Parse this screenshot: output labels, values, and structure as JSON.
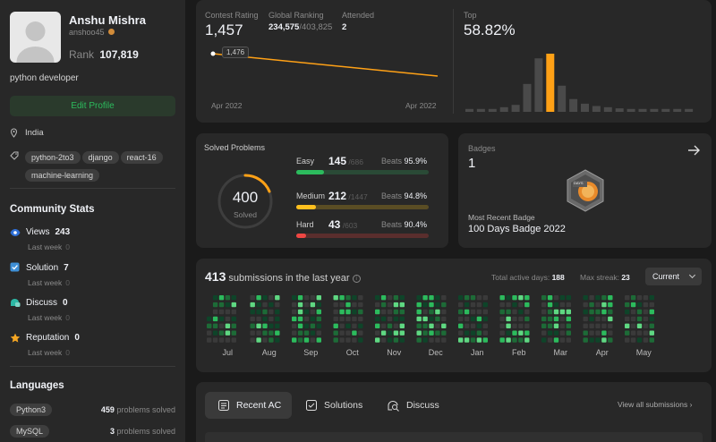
{
  "profile": {
    "name": "Anshu Mishra",
    "username": "anshoo45",
    "rank_label": "Rank",
    "rank": "107,819",
    "bio": "python developer",
    "edit_label": "Edit Profile",
    "location": "India",
    "skills": [
      "python-2to3",
      "django",
      "react-16",
      "machine-learning"
    ]
  },
  "community": {
    "title": "Community Stats",
    "items": [
      {
        "label": "Views",
        "value": "243",
        "sub": "Last week",
        "sub_value": "0"
      },
      {
        "label": "Solution",
        "value": "7",
        "sub": "Last week",
        "sub_value": "0"
      },
      {
        "label": "Discuss",
        "value": "0",
        "sub": "Last week",
        "sub_value": "0"
      },
      {
        "label": "Reputation",
        "value": "0",
        "sub": "Last week",
        "sub_value": "0"
      }
    ]
  },
  "languages": {
    "title": "Languages",
    "items": [
      {
        "name": "Python3",
        "count": "459",
        "suffix": "problems solved"
      },
      {
        "name": "MySQL",
        "count": "3",
        "suffix": "problems solved"
      }
    ]
  },
  "contest": {
    "rating_label": "Contest Rating",
    "rating": "1,457",
    "global_label": "Global Ranking",
    "global": "234,575",
    "global_total": "/403,825",
    "attended_label": "Attended",
    "attended": "2",
    "tooltip": "1,476",
    "x_start": "Apr 2022",
    "x_end": "Apr 2022",
    "top_label": "Top",
    "top": "58.82%",
    "hist": [
      0.05,
      0.05,
      0.05,
      0.08,
      0.12,
      0.48,
      0.92,
      1.0,
      0.45,
      0.22,
      0.14,
      0.1,
      0.08,
      0.06,
      0.05,
      0.05,
      0.05,
      0.05,
      0.05,
      0.05
    ],
    "hist_highlight": 7,
    "line_color": "#ffa116"
  },
  "solved": {
    "title": "Solved Problems",
    "total": "400",
    "total_label": "Solved",
    "rows": [
      {
        "label": "Easy",
        "count": "145",
        "total": "/686",
        "beats_label": "Beats",
        "beats": "95.9%",
        "fraction": 0.211,
        "color": "#2cbb5d",
        "track": "#2a4a36"
      },
      {
        "label": "Medium",
        "count": "212",
        "total": "/1447",
        "beats_label": "Beats",
        "beats": "94.8%",
        "fraction": 0.147,
        "color": "#ffc01e",
        "track": "#5a4d24"
      },
      {
        "label": "Hard",
        "count": "43",
        "total": "/603",
        "beats_label": "Beats",
        "beats": "90.4%",
        "fraction": 0.071,
        "color": "#ef4743",
        "track": "#5a2e2d"
      }
    ]
  },
  "badges": {
    "title": "Badges",
    "count": "1",
    "recent_label": "Most Recent Badge",
    "recent": "100 Days Badge 2022",
    "badge_text": "DAYS"
  },
  "calendar": {
    "count": "413",
    "text": "submissions in the last year",
    "active_label": "Total active days:",
    "active": "188",
    "streak_label": "Max streak:",
    "streak": "23",
    "select": "Current",
    "months": [
      "Jul",
      "Aug",
      "Sep",
      "Oct",
      "Nov",
      "Dec",
      "Jan",
      "Feb",
      "Mar",
      "Apr",
      "May"
    ]
  },
  "tabs": {
    "items": [
      "Recent AC",
      "Solutions",
      "Discuss"
    ],
    "active": 0,
    "view_all": "View all submissions"
  }
}
